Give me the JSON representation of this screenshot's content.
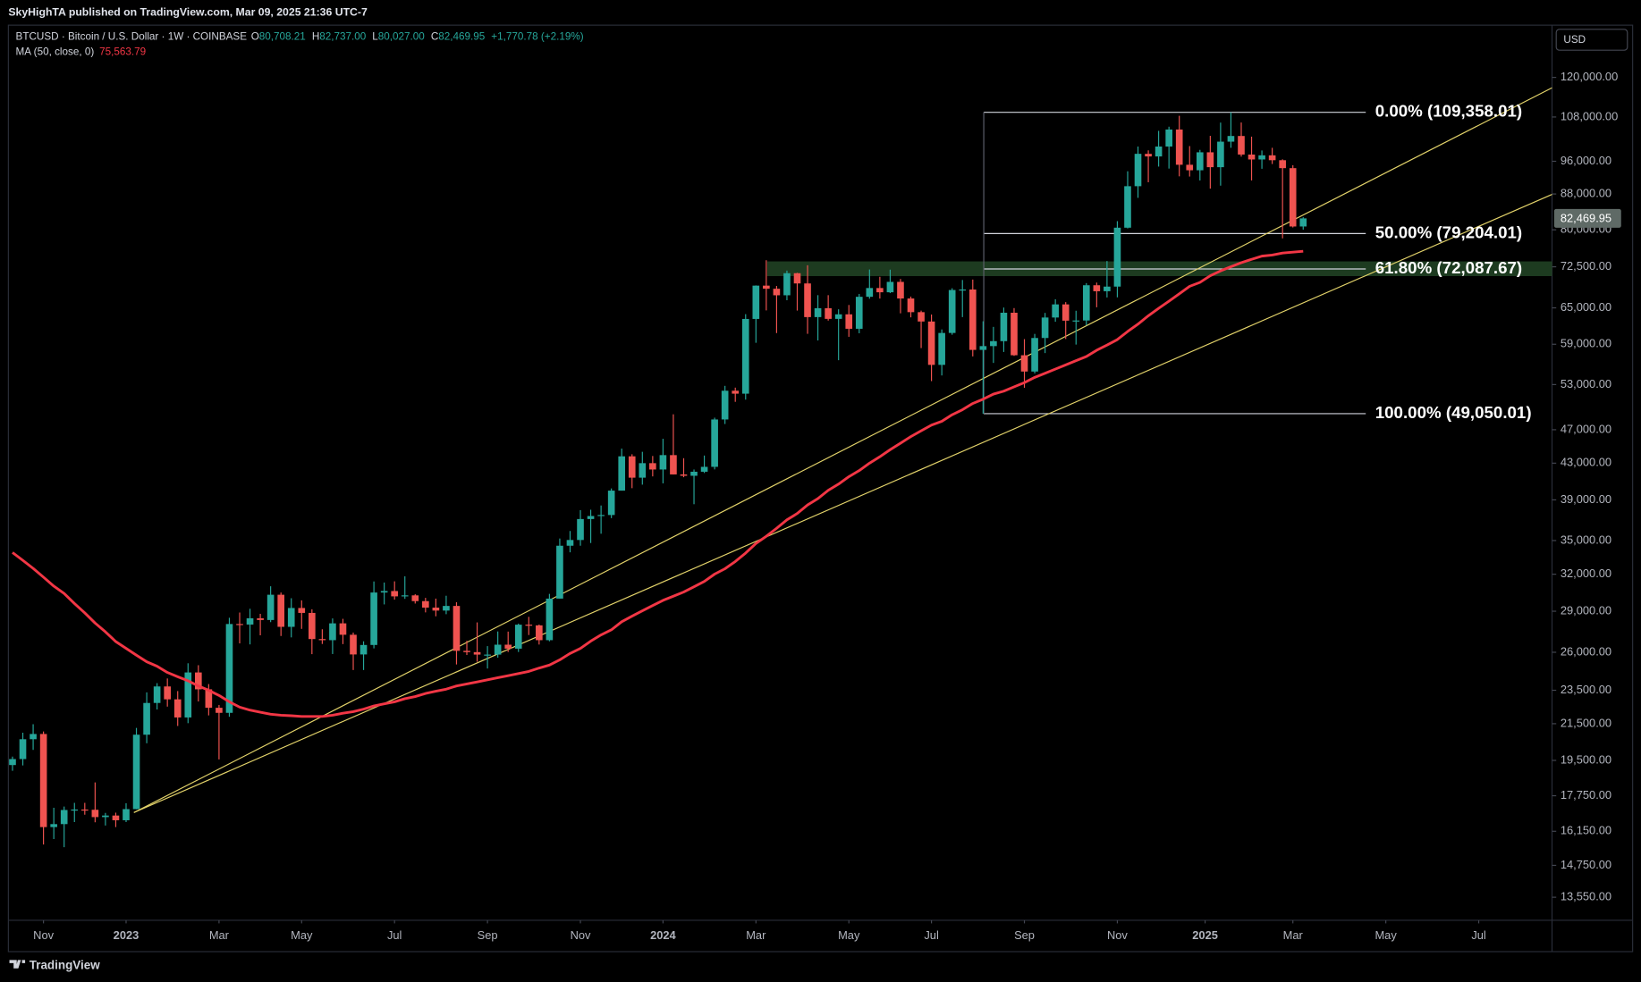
{
  "header": {
    "published": "SkyHighTA published on TradingView.com, Mar 09, 2025 21:36 UTC-7",
    "brand": "TradingView"
  },
  "chart_data": {
    "type": "candlestick",
    "symbol": "BTCUSD · Bitcoin / U.S. Dollar · 1W · COINBASE",
    "ohlc_legend": [
      {
        "key": "O",
        "value": "80,708.21"
      },
      {
        "key": "H",
        "value": "82,737.00"
      },
      {
        "key": "L",
        "value": "80,027.00"
      },
      {
        "key": "C",
        "value": "82,469.95"
      }
    ],
    "change": "+1,770.78 (+2.19%)",
    "currency": "USD",
    "last_price": {
      "value": 82469.95,
      "label": "82,469.95"
    },
    "up_color": "#26a69a",
    "down_color": "#ef5350",
    "log_scale": true,
    "ylim": [
      12745,
      137130
    ],
    "yticks": [
      {
        "value": 120000,
        "label": "120,000.00"
      },
      {
        "value": 108000,
        "label": "108,000.00"
      },
      {
        "value": 96000,
        "label": "96,000.00"
      },
      {
        "value": 88000,
        "label": "88,000.00"
      },
      {
        "value": 80000,
        "label": "80,000.00"
      },
      {
        "value": 72500,
        "label": "72,500.00"
      },
      {
        "value": 65000,
        "label": "65,000.00"
      },
      {
        "value": 59000,
        "label": "59,000.00"
      },
      {
        "value": 53000,
        "label": "53,000.00"
      },
      {
        "value": 47000,
        "label": "47,000.00"
      },
      {
        "value": 43000,
        "label": "43,000.00"
      },
      {
        "value": 39000,
        "label": "39,000.00"
      },
      {
        "value": 35000,
        "label": "35,000.00"
      },
      {
        "value": 32000,
        "label": "32,000.00"
      },
      {
        "value": 29000,
        "label": "29,000.00"
      },
      {
        "value": 26000,
        "label": "26,000.00"
      },
      {
        "value": 23500,
        "label": "23,500.00"
      },
      {
        "value": 21500,
        "label": "21,500.00"
      },
      {
        "value": 19500,
        "label": "19,500.00"
      },
      {
        "value": 17750,
        "label": "17,750.00"
      },
      {
        "value": 16150,
        "label": "16,150.00"
      },
      {
        "value": 14750,
        "label": "14,750.00"
      },
      {
        "value": 13550,
        "label": "13,550.00"
      }
    ],
    "xlim": [
      -0.4,
      149.1
    ],
    "xticks": [
      {
        "value": 3,
        "label": "Nov"
      },
      {
        "value": 11,
        "label": "2023"
      },
      {
        "value": 20,
        "label": "Mar"
      },
      {
        "value": 28,
        "label": "May"
      },
      {
        "value": 37,
        "label": "Jul"
      },
      {
        "value": 46,
        "label": "Sep"
      },
      {
        "value": 55,
        "label": "Nov"
      },
      {
        "value": 63,
        "label": "2024"
      },
      {
        "value": 72,
        "label": "Mar"
      },
      {
        "value": 81,
        "label": "May"
      },
      {
        "value": 89,
        "label": "Jul"
      },
      {
        "value": 98,
        "label": "Sep"
      },
      {
        "value": 107,
        "label": "Nov"
      },
      {
        "value": 115.5,
        "label": "2025"
      },
      {
        "value": 124,
        "label": "Mar"
      },
      {
        "value": 133,
        "label": "May"
      },
      {
        "value": 142,
        "label": "Jul"
      }
    ],
    "ohlc": [
      [
        19260,
        19700,
        18970,
        19570
      ],
      [
        19570,
        20990,
        19240,
        20630
      ],
      [
        20630,
        21470,
        20050,
        20920
      ],
      [
        20920,
        21060,
        15590,
        16330
      ],
      [
        16330,
        17190,
        15820,
        16460
      ],
      [
        16460,
        17250,
        15480,
        17090
      ],
      [
        17090,
        17420,
        16550,
        17110
      ],
      [
        17110,
        17420,
        16880,
        17100
      ],
      [
        17100,
        18390,
        16540,
        16770
      ],
      [
        16770,
        16960,
        16400,
        16840
      ],
      [
        16840,
        16970,
        16330,
        16630
      ],
      [
        16630,
        17400,
        16550,
        17130
      ],
      [
        17130,
        21260,
        17120,
        20880
      ],
      [
        20880,
        23370,
        20410,
        22720
      ],
      [
        22720,
        23950,
        22330,
        23740
      ],
      [
        23740,
        24250,
        22500,
        22940
      ],
      [
        22940,
        23450,
        21370,
        21860
      ],
      [
        21860,
        25250,
        21530,
        24640
      ],
      [
        24640,
        25120,
        22810,
        23560
      ],
      [
        23560,
        23890,
        21980,
        22430
      ],
      [
        22430,
        22600,
        19550,
        22130
      ],
      [
        22130,
        28500,
        21900,
        28030
      ],
      [
        28030,
        28900,
        26620,
        27990
      ],
      [
        27990,
        29190,
        26550,
        28460
      ],
      [
        28460,
        28800,
        27200,
        28330
      ],
      [
        28330,
        30990,
        28170,
        30300
      ],
      [
        30300,
        30480,
        27150,
        27820
      ],
      [
        27820,
        30020,
        27050,
        29250
      ],
      [
        29250,
        29850,
        27670,
        28870
      ],
      [
        28870,
        29150,
        25870,
        26930
      ],
      [
        26930,
        27640,
        26580,
        26850
      ],
      [
        26850,
        28450,
        25880,
        28080
      ],
      [
        28080,
        28420,
        26570,
        27240
      ],
      [
        27240,
        27400,
        24800,
        25850
      ],
      [
        25850,
        26770,
        24800,
        26510
      ],
      [
        26510,
        31390,
        26270,
        30480
      ],
      [
        30480,
        31300,
        29530,
        30600
      ],
      [
        30600,
        31400,
        29910,
        30170
      ],
      [
        30170,
        31820,
        29970,
        30250
      ],
      [
        30250,
        30340,
        29600,
        29790
      ],
      [
        29790,
        30050,
        28910,
        29280
      ],
      [
        29280,
        29990,
        28610,
        29050
      ],
      [
        29050,
        30220,
        28770,
        29410
      ],
      [
        29410,
        29700,
        25170,
        26100
      ],
      [
        26100,
        26810,
        25810,
        26010
      ],
      [
        26010,
        28150,
        25350,
        25840
      ],
      [
        25840,
        26430,
        24900,
        25840
      ],
      [
        25840,
        27480,
        25630,
        26530
      ],
      [
        26530,
        27470,
        26020,
        26250
      ],
      [
        26250,
        28060,
        26020,
        27980
      ],
      [
        27980,
        28570,
        27220,
        27930
      ],
      [
        27930,
        27990,
        26540,
        26850
      ],
      [
        26850,
        30370,
        26770,
        29990
      ],
      [
        29990,
        35190,
        29990,
        34520
      ],
      [
        34520,
        35900,
        33920,
        35050
      ],
      [
        35050,
        37950,
        34520,
        37060
      ],
      [
        37060,
        37990,
        34770,
        37360
      ],
      [
        37360,
        38420,
        35640,
        37460
      ],
      [
        37460,
        40200,
        37150,
        39970
      ],
      [
        39970,
        44700,
        39970,
        43790
      ],
      [
        43790,
        44030,
        40230,
        41370
      ],
      [
        41370,
        44320,
        40610,
        43000
      ],
      [
        43000,
        43830,
        41510,
        42280
      ],
      [
        42280,
        45880,
        40750,
        43930
      ],
      [
        43930,
        48970,
        41720,
        41730
      ],
      [
        41730,
        43570,
        41420,
        41580
      ],
      [
        41580,
        42280,
        38550,
        42030
      ],
      [
        42030,
        43880,
        41890,
        42580
      ],
      [
        42580,
        48530,
        42290,
        48300
      ],
      [
        48300,
        52820,
        47720,
        52140
      ],
      [
        52140,
        52570,
        50620,
        51730
      ],
      [
        51730,
        63920,
        50920,
        63110
      ],
      [
        63110,
        69000,
        59230,
        68960
      ],
      [
        68960,
        73780,
        64560,
        68390
      ],
      [
        68390,
        68900,
        60780,
        67210
      ],
      [
        67210,
        71770,
        66330,
        71280
      ],
      [
        71280,
        71350,
        64530,
        69360
      ],
      [
        69360,
        72800,
        60660,
        63420
      ],
      [
        63420,
        67230,
        59600,
        64940
      ],
      [
        64940,
        67230,
        62830,
        63120
      ],
      [
        63120,
        64750,
        56550,
        63890
      ],
      [
        63890,
        65500,
        60180,
        61480
      ],
      [
        61480,
        67450,
        60750,
        66940
      ],
      [
        66940,
        71980,
        66600,
        68520
      ],
      [
        68520,
        70600,
        66630,
        67750
      ],
      [
        67750,
        71950,
        67600,
        69650
      ],
      [
        69650,
        70190,
        64060,
        66640
      ],
      [
        66640,
        66980,
        63380,
        64260
      ],
      [
        64260,
        64520,
        58400,
        62680
      ],
      [
        62680,
        63860,
        53490,
        55850
      ],
      [
        55850,
        61370,
        54300,
        60800
      ],
      [
        60800,
        68480,
        60510,
        68160
      ],
      [
        68160,
        70000,
        63420,
        68250
      ],
      [
        68250,
        70080,
        57120,
        58120
      ],
      [
        58120,
        62720,
        49050,
        58710
      ],
      [
        58710,
        61790,
        56140,
        59490
      ],
      [
        59490,
        65050,
        57800,
        64160
      ],
      [
        64160,
        64960,
        57200,
        57300
      ],
      [
        57300,
        59810,
        52550,
        54870
      ],
      [
        54870,
        60650,
        54590,
        59990
      ],
      [
        59990,
        64130,
        57630,
        63350
      ],
      [
        63350,
        66500,
        62640,
        65600
      ],
      [
        65600,
        66000,
        59830,
        62820
      ],
      [
        62820,
        64500,
        58950,
        62850
      ],
      [
        62850,
        69420,
        62040,
        69030
      ],
      [
        69030,
        69520,
        65100,
        67940
      ],
      [
        67940,
        73620,
        66820,
        68780
      ],
      [
        68780,
        81860,
        66840,
        80450
      ],
      [
        80450,
        93480,
        80290,
        89840
      ],
      [
        89840,
        99840,
        87100,
        97920
      ],
      [
        97920,
        98830,
        90790,
        97240
      ],
      [
        97240,
        104090,
        94650,
        99840
      ],
      [
        99840,
        105250,
        94150,
        104460
      ],
      [
        104460,
        108350,
        92230,
        95110
      ],
      [
        95110,
        99960,
        92180,
        93730
      ],
      [
        93730,
        98960,
        91220,
        98320
      ],
      [
        98320,
        102720,
        89260,
        94500
      ],
      [
        94500,
        106400,
        89970,
        101140
      ],
      [
        101140,
        109360,
        99500,
        102680
      ],
      [
        102680,
        106430,
        97200,
        97730
      ],
      [
        97730,
        102500,
        91230,
        96460
      ],
      [
        96460,
        98800,
        94100,
        97530
      ],
      [
        97530,
        99500,
        95300,
        96270
      ],
      [
        96270,
        96500,
        78200,
        94260
      ],
      [
        94260,
        95000,
        80500,
        80708.21
      ],
      [
        80708.21,
        82737,
        80027,
        82469.95
      ]
    ],
    "ma": {
      "name": "MA (50, close, 0)",
      "value_label": "75,563.79",
      "color": "#f23645",
      "values": [
        33900,
        33200,
        32500,
        31750,
        31000,
        30400,
        29600,
        28870,
        28100,
        27450,
        26750,
        26270,
        25800,
        25350,
        25050,
        24640,
        24360,
        24100,
        23770,
        23500,
        23180,
        22790,
        22470,
        22290,
        22170,
        22050,
        21990,
        21960,
        21920,
        21920,
        21920,
        21990,
        22110,
        22200,
        22350,
        22540,
        22670,
        22790,
        22980,
        23110,
        23300,
        23440,
        23570,
        23770,
        23900,
        24030,
        24160,
        24300,
        24430,
        24570,
        24710,
        24930,
        25130,
        25480,
        25920,
        26270,
        26780,
        27230,
        27600,
        28200,
        28620,
        29030,
        29440,
        29850,
        30180,
        30520,
        30950,
        31390,
        32010,
        32470,
        33100,
        33850,
        34730,
        35400,
        36160,
        36980,
        37610,
        38470,
        39130,
        40000,
        40670,
        41480,
        42160,
        43000,
        43740,
        44570,
        45350,
        46150,
        46870,
        47580,
        48060,
        48910,
        49570,
        50400,
        50980,
        51670,
        52080,
        52680,
        53280,
        54020,
        54620,
        55230,
        55850,
        56480,
        57100,
        58070,
        58870,
        59740,
        61040,
        62250,
        63640,
        64920,
        66160,
        67480,
        68830,
        69550,
        70800,
        71720,
        72520,
        73300,
        73960,
        74590,
        74800,
        75210,
        75390,
        75563.79
      ]
    },
    "fib_levels": [
      {
        "label": "0.00% (109,358.01)",
        "value": 109358.01
      },
      {
        "label": "50.00% (79,204.01)",
        "value": 79204.01
      },
      {
        "label": "61.80% (72,087.67)",
        "value": 72087.67
      },
      {
        "label": "100.00% (49,050.01)",
        "value": 49050.01
      }
    ],
    "zone": {
      "values": [
        70730,
        73550
      ],
      "color": "#1d3b20"
    },
    "trendlines": [
      {
        "x": [
          11.76,
          149.1
        ],
        "values": [
          16975,
          116730
        ],
        "color": "#e3d36a"
      },
      {
        "x": [
          11.76,
          149.1
        ],
        "values": [
          16975,
          87900
        ],
        "color": "#e3d36a"
      }
    ]
  }
}
